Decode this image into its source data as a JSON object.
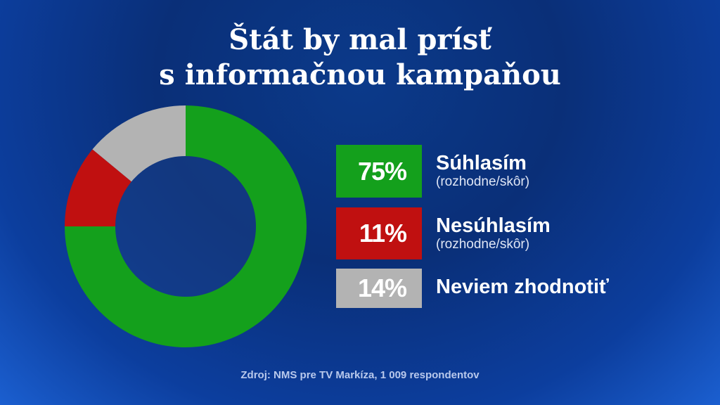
{
  "title": [
    "Štát by mal prísť",
    "s informačnou kampaňou"
  ],
  "chart_data": {
    "type": "pie",
    "title": "Štát by mal prísť s informačnou kampaňou",
    "series": [
      {
        "name": "Súhlasím",
        "sub": "(rozhodne/skôr)",
        "value": 75,
        "label": "75%",
        "color": "#14a01c"
      },
      {
        "name": "Nesúhlasím",
        "sub": "(rozhodne/skôr)",
        "value": 11,
        "label": "11%",
        "color": "#c01010"
      },
      {
        "name": "Neviem zhodnotiť",
        "sub": "",
        "value": 14,
        "label": "14%",
        "color": "#b3b3b3"
      }
    ]
  },
  "source": "Zdroj: NMS pre TV Markíza, 1 009 respondentov"
}
